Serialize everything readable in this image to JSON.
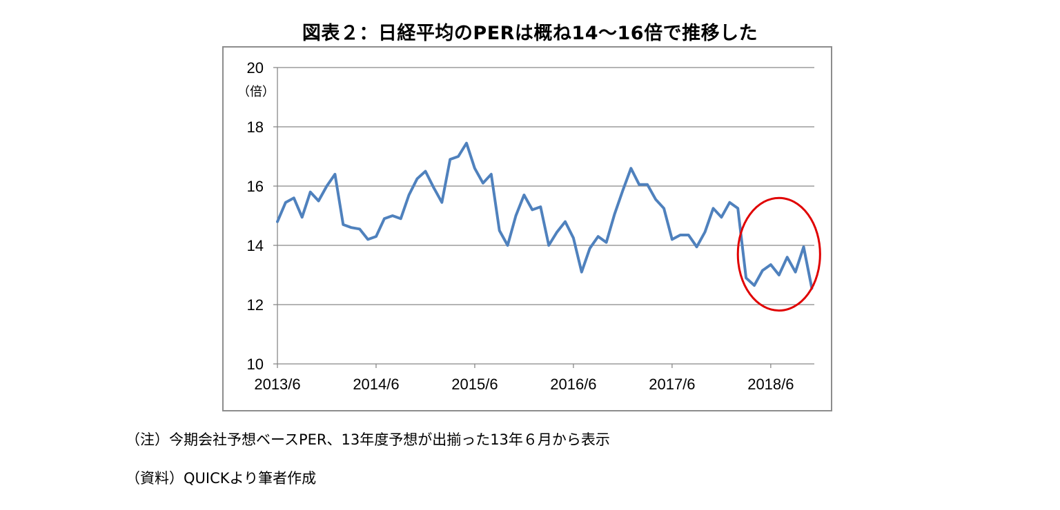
{
  "title": "図表２：日経平均のPERは概ね14～16倍で推移した",
  "note": "（注）今期会社予想ベースPER、13年度予想が出揃った13年６月から表示",
  "source": "（資料）QUICKより筆者作成",
  "chart_data": {
    "type": "line",
    "title": "図表２：日経平均のPERは概ね14～16倍で推移した",
    "xlabel": "",
    "ylabel": "（倍）",
    "ylim": [
      10,
      20
    ],
    "yticks": [
      10,
      12,
      14,
      16,
      18,
      20
    ],
    "xticks": [
      "2013/6",
      "2014/6",
      "2015/6",
      "2016/6",
      "2017/6",
      "2018/6"
    ],
    "grid": "horizontal",
    "x_start": "2013/6",
    "x_end": "2018/11",
    "colors": {
      "line": "#4f81bd",
      "highlight": "#e00000",
      "grid": "#888888",
      "axis": "#888888"
    },
    "series": [
      {
        "values": [
          14.8,
          15.45,
          15.6,
          14.95,
          15.8,
          15.5,
          16.0,
          16.4,
          14.7,
          14.6,
          14.55,
          14.2,
          14.3,
          14.9,
          15.0,
          14.9,
          15.7,
          16.25,
          16.5,
          15.95,
          15.45,
          16.9,
          17.0,
          17.45,
          16.6,
          16.1,
          16.4,
          14.5,
          14.0,
          15.0,
          15.7,
          15.2,
          15.3,
          14.0,
          14.45,
          14.8,
          14.25,
          13.1,
          13.9,
          14.3,
          14.1,
          15.05,
          15.85,
          16.6,
          16.05,
          16.05,
          15.55,
          15.25,
          14.2,
          14.35,
          14.35,
          13.95,
          14.45,
          15.25,
          14.95,
          15.45,
          15.25,
          12.9,
          12.65,
          13.15,
          13.35,
          13.0,
          13.6,
          13.1,
          13.95,
          12.55
        ]
      }
    ],
    "annotations": [
      {
        "type": "ellipse",
        "color": "#e00000",
        "from": "2018/2",
        "to": "2018/12",
        "ymin": 11.8,
        "ymax": 15.6
      }
    ]
  }
}
